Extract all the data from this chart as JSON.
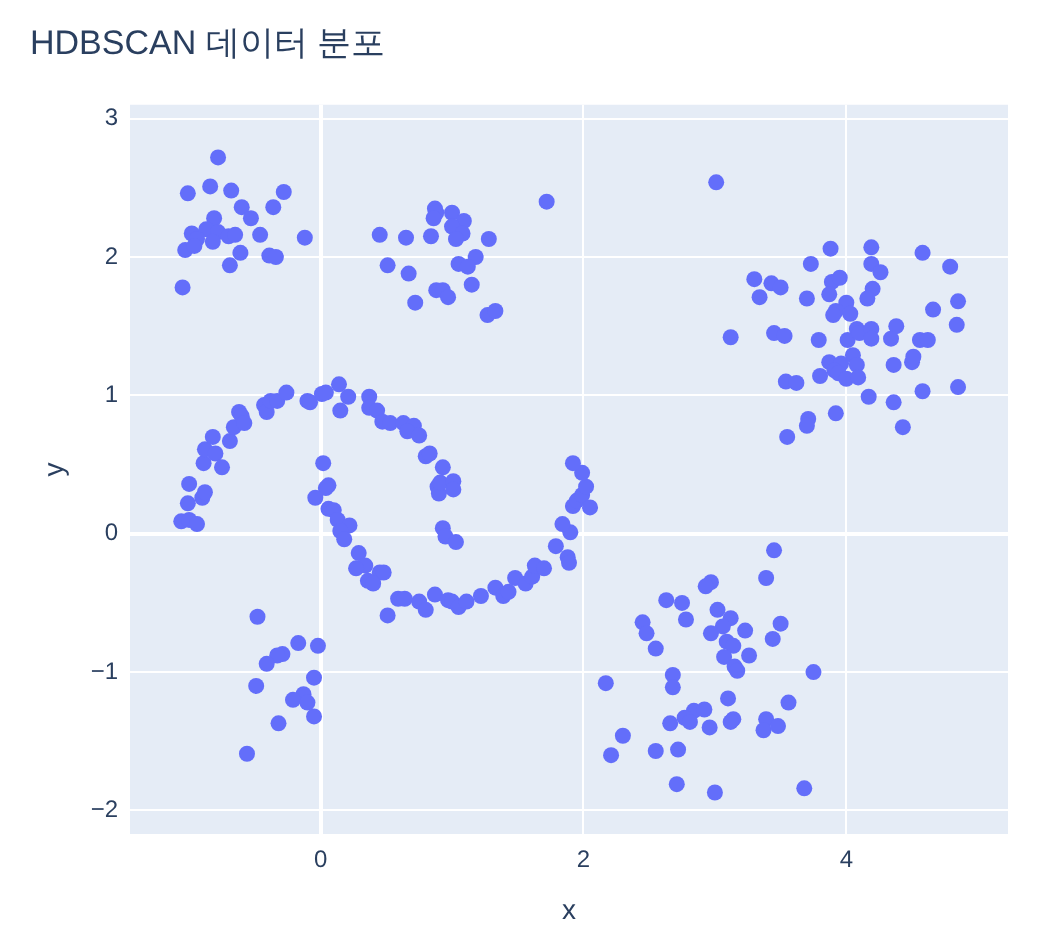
{
  "chart_data": {
    "type": "scatter",
    "title": "HDBSCAN 데이터 분포",
    "xlabel": "x",
    "ylabel": "y",
    "xlim": [
      -1.45,
      5.23
    ],
    "ylim": [
      -2.17,
      3.1
    ],
    "xticks": [
      0,
      2,
      4
    ],
    "yticks": [
      {
        "value": -2,
        "label": "−2"
      },
      {
        "value": -1,
        "label": "−1"
      },
      0,
      1,
      2,
      3
    ],
    "grid": true,
    "marker": "circle",
    "series": [
      {
        "color": "#636efa",
        "x": [
          -0.78,
          -1.01,
          -0.84,
          -0.68,
          -0.28,
          -0.6,
          -0.36,
          -0.81,
          -0.53,
          -0.98,
          -0.87,
          -0.78,
          -0.94,
          -0.82,
          -0.7,
          -0.65,
          -0.46,
          -0.12,
          -1.03,
          -0.96,
          -0.61,
          -0.39,
          -0.34,
          -0.69,
          -1.05,
          0.45,
          0.65,
          0.84,
          0.87,
          0.88,
          0.86,
          1.0,
          1.09,
          1.0,
          1.08,
          1.03,
          1.28,
          1.72,
          0.51,
          0.67,
          1.18,
          1.05,
          1.12,
          1.15,
          0.88,
          0.93,
          0.97,
          0.72,
          1.27,
          1.33,
          3.01,
          3.88,
          4.19,
          4.58,
          3.73,
          4.19,
          4.26,
          4.79,
          3.3,
          3.43,
          3.5,
          3.89,
          3.95,
          3.34,
          3.7,
          3.87,
          4.2,
          4.16,
          4.0,
          3.92,
          3.9,
          4.03,
          4.66,
          4.85,
          4.84,
          3.12,
          3.45,
          3.53,
          3.79,
          4.01,
          4.08,
          4.1,
          4.19,
          4.19,
          4.38,
          4.34,
          4.56,
          4.62,
          4.05,
          3.87,
          3.96,
          4.08,
          3.91,
          3.94,
          4.0,
          4.09,
          4.36,
          4.5,
          4.51,
          3.8,
          3.54,
          3.62,
          4.17,
          4.36,
          4.58,
          4.85,
          3.92,
          3.71,
          3.7,
          3.55,
          4.43,
          3.45,
          3.39,
          2.97,
          2.93,
          2.63,
          2.75,
          3.02,
          2.45,
          2.78,
          3.12,
          3.5,
          2.48,
          3.06,
          3.23,
          2.97,
          3.44,
          3.09,
          3.14,
          2.55,
          3.07,
          3.26,
          3.15,
          3.17,
          3.75,
          2.17,
          2.68,
          2.68,
          3.1,
          3.56,
          2.84,
          2.92,
          2.77,
          2.81,
          2.66,
          3.14,
          3.12,
          3.39,
          2.96,
          3.37,
          3.48,
          2.3,
          2.21,
          2.55,
          2.72,
          2.71,
          3.0,
          3.68,
          -0.48,
          -0.17,
          -0.02,
          -0.29,
          -0.33,
          -0.41,
          -0.05,
          -0.49,
          -0.13,
          -0.21,
          -0.1,
          -0.32,
          -0.05,
          -0.56,
          -1.06,
          -1.0,
          -0.94,
          -1.01,
          -1.0,
          -0.9,
          -0.88,
          -0.89,
          -0.88,
          -0.8,
          -0.75,
          -0.82,
          -0.69,
          -0.66,
          -0.62,
          -0.6,
          -0.58,
          -0.43,
          -0.41,
          -0.38,
          -0.33,
          -0.26,
          -0.1,
          -0.08,
          0.01,
          0.04,
          0.14,
          0.21,
          0.15,
          0.37,
          0.37,
          0.43,
          0.47,
          0.53,
          0.63,
          0.71,
          0.66,
          0.75,
          0.8,
          0.83,
          0.89,
          0.9,
          0.02,
          0.06,
          0.04,
          -0.04,
          0.06,
          0.1,
          0.13,
          0.22,
          0.15,
          0.18,
          0.29,
          0.34,
          0.27,
          0.45,
          0.48,
          0.36,
          0.4,
          0.51,
          0.59,
          0.64,
          0.75,
          0.8,
          0.87,
          0.93,
          0.91,
          1.01,
          1.01,
          0.93,
          0.95,
          1.03,
          0.97,
          1.0,
          1.05,
          1.11,
          1.22,
          1.33,
          1.39,
          1.43,
          1.48,
          1.56,
          1.61,
          1.63,
          1.7,
          1.79,
          1.88,
          1.89,
          1.9,
          1.84,
          1.92,
          1.95,
          1.99,
          2.05,
          2.02,
          1.99,
          1.92
        ],
        "values": [
          2.72,
          2.46,
          2.51,
          2.48,
          2.47,
          2.36,
          2.36,
          2.28,
          2.28,
          2.17,
          2.2,
          2.18,
          2.13,
          2.11,
          2.15,
          2.16,
          2.16,
          2.14,
          2.05,
          2.08,
          2.03,
          2.01,
          2.0,
          1.94,
          1.78,
          2.16,
          2.14,
          2.15,
          2.35,
          2.32,
          2.28,
          2.32,
          2.26,
          2.22,
          2.17,
          2.13,
          2.13,
          2.4,
          1.94,
          1.88,
          2.0,
          1.95,
          1.93,
          1.8,
          1.76,
          1.76,
          1.71,
          1.67,
          1.58,
          1.61,
          2.54,
          2.06,
          2.07,
          2.03,
          1.95,
          1.95,
          1.89,
          1.93,
          1.84,
          1.81,
          1.78,
          1.82,
          1.85,
          1.71,
          1.7,
          1.73,
          1.77,
          1.7,
          1.67,
          1.61,
          1.58,
          1.59,
          1.62,
          1.68,
          1.51,
          1.42,
          1.45,
          1.43,
          1.4,
          1.4,
          1.48,
          1.45,
          1.48,
          1.41,
          1.5,
          1.41,
          1.4,
          1.4,
          1.29,
          1.24,
          1.23,
          1.22,
          1.18,
          1.16,
          1.12,
          1.13,
          1.22,
          1.24,
          1.28,
          1.14,
          1.1,
          1.09,
          0.99,
          0.95,
          1.03,
          1.06,
          0.87,
          0.83,
          0.78,
          0.7,
          0.77,
          -0.12,
          -0.32,
          -0.35,
          -0.38,
          -0.48,
          -0.5,
          -0.55,
          -0.64,
          -0.62,
          -0.61,
          -0.65,
          -0.72,
          -0.67,
          -0.7,
          -0.72,
          -0.76,
          -0.78,
          -0.81,
          -0.83,
          -0.89,
          -0.88,
          -0.96,
          -0.99,
          -1.0,
          -1.08,
          -1.02,
          -1.11,
          -1.19,
          -1.22,
          -1.28,
          -1.27,
          -1.33,
          -1.36,
          -1.37,
          -1.34,
          -1.36,
          -1.34,
          -1.4,
          -1.42,
          -1.39,
          -1.46,
          -1.6,
          -1.57,
          -1.56,
          -1.81,
          -1.87,
          -1.84,
          -0.6,
          -0.79,
          -0.81,
          -0.87,
          -0.88,
          -0.94,
          -1.04,
          -1.1,
          -1.16,
          -1.2,
          -1.22,
          -1.37,
          -1.32,
          -1.59,
          0.09,
          0.1,
          0.07,
          0.22,
          0.36,
          0.26,
          0.3,
          0.51,
          0.61,
          0.58,
          0.48,
          0.7,
          0.67,
          0.77,
          0.88,
          0.85,
          0.8,
          0.93,
          0.88,
          0.96,
          0.96,
          1.02,
          0.96,
          0.95,
          1.01,
          1.02,
          1.08,
          0.99,
          0.89,
          0.99,
          0.91,
          0.89,
          0.81,
          0.8,
          0.8,
          0.78,
          0.74,
          0.71,
          0.56,
          0.58,
          0.34,
          0.29,
          0.51,
          0.35,
          0.33,
          0.26,
          0.18,
          0.17,
          0.1,
          0.06,
          0.02,
          -0.04,
          -0.14,
          -0.23,
          -0.25,
          -0.28,
          -0.28,
          -0.34,
          -0.36,
          -0.59,
          -0.47,
          -0.47,
          -0.49,
          -0.55,
          -0.44,
          0.48,
          0.37,
          0.38,
          0.32,
          0.04,
          -0.02,
          -0.06,
          -0.48,
          -0.49,
          -0.53,
          -0.49,
          -0.45,
          -0.39,
          -0.45,
          -0.42,
          -0.32,
          -0.36,
          -0.31,
          -0.23,
          -0.25,
          -0.09,
          -0.17,
          -0.21,
          0.01,
          0.07,
          0.2,
          0.24,
          0.28,
          0.19,
          0.34,
          0.44,
          0.51
        ]
      }
    ]
  }
}
